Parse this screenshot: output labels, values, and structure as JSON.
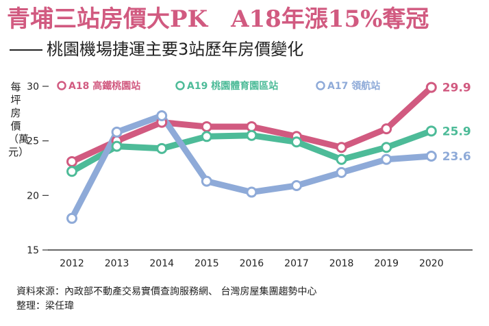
{
  "header": {
    "title": "青埔三站房價大PK　A18年漲15%奪冠",
    "subtitle": "桃園機場捷運主要3站歷年房價變化"
  },
  "chart_data": {
    "type": "line",
    "x": [
      "2012",
      "2013",
      "2014",
      "2015",
      "2016",
      "2017",
      "2018",
      "2019",
      "2020"
    ],
    "ylabel": "每坪房價（萬元）",
    "ylim": [
      15,
      30
    ],
    "yticks": [
      15,
      20,
      25,
      30
    ],
    "grid": false,
    "legend": "top",
    "series": [
      {
        "name": "A18 高鐵桃園站",
        "color": "#d15a80",
        "values": [
          23.1,
          25.0,
          26.7,
          26.3,
          26.3,
          25.4,
          24.4,
          26.1,
          29.9
        ],
        "end_label": "29.9"
      },
      {
        "name": "A19 桃園體育園區站",
        "color": "#4dbb98",
        "values": [
          22.2,
          24.5,
          24.3,
          25.4,
          25.5,
          24.9,
          23.3,
          24.4,
          25.9
        ],
        "end_label": "25.9"
      },
      {
        "name": "A17 領航站",
        "color": "#8eaad8",
        "values": [
          17.9,
          25.8,
          27.3,
          21.3,
          20.3,
          20.9,
          22.1,
          23.3,
          23.6
        ],
        "end_label": "23.6"
      }
    ]
  },
  "footer": {
    "source": "資料來源：內政部不動產交易實價查詢服務網、 台灣房屋集團趨勢中心",
    "editor": "整理：梁任瑋"
  }
}
